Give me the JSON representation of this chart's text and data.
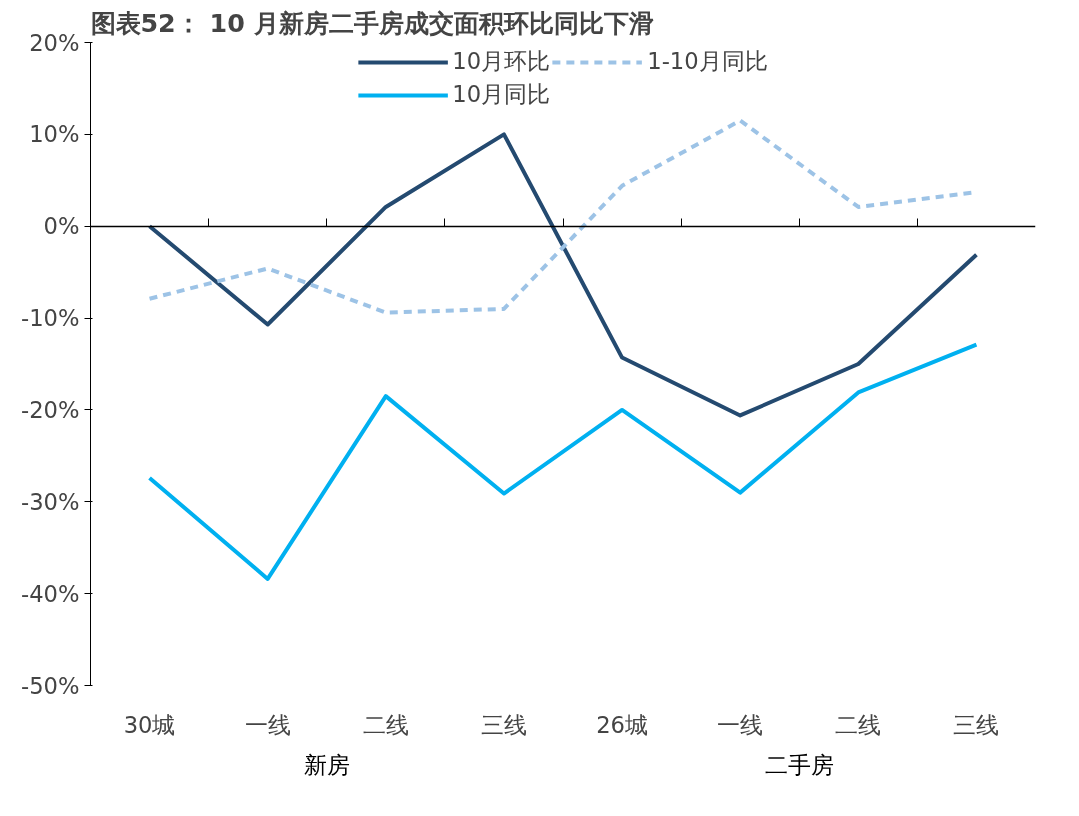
{
  "chart_data": {
    "type": "line",
    "title": "图表52： 10 月新房二手房成交面积环比同比下滑",
    "categories": [
      "30城",
      "一线",
      "二线",
      "三线",
      "26城",
      "一线",
      "二线",
      "三线"
    ],
    "annotations": [
      "新房",
      "二手房"
    ],
    "series": [
      {
        "name": "10月环比",
        "color": "#244a70",
        "values": [
          0,
          -10.7,
          2.1,
          10,
          -14.3,
          -20.6,
          -15,
          -3.1
        ]
      },
      {
        "name": "10月同比",
        "color": "#00b0f0",
        "values": [
          -27.4,
          -38.4,
          -18.5,
          -29.1,
          -20,
          -29,
          -18.1,
          -12.9
        ]
      },
      {
        "name": "1-10月同比",
        "color": "#9dc3e6",
        "line_style": "dashed",
        "values": [
          -7.9,
          -4.6,
          -9.4,
          -9,
          4.4,
          11.5,
          2.1,
          3.7
        ]
      }
    ],
    "ylim": [
      -50,
      20
    ],
    "yticks": [
      {
        "value": 20,
        "label": "20%"
      },
      {
        "value": 10,
        "label": "10%"
      },
      {
        "value": 0,
        "label": "0%"
      },
      {
        "value": -10,
        "label": "-10%"
      },
      {
        "value": -20,
        "label": "-20%"
      },
      {
        "value": -30,
        "label": "-30%"
      },
      {
        "value": -40,
        "label": "-40%"
      },
      {
        "value": -50,
        "label": "-50%"
      }
    ],
    "legend": "top",
    "line_style": "solid"
  }
}
